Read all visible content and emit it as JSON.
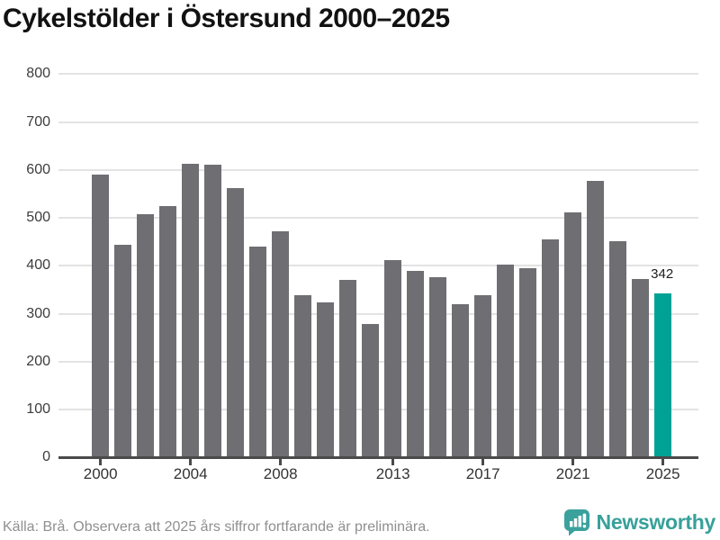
{
  "chart_data": {
    "type": "bar",
    "title": "Cykelstölder i Östersund 2000–2025",
    "categories": [
      2000,
      2001,
      2002,
      2003,
      2004,
      2005,
      2006,
      2007,
      2008,
      2009,
      2010,
      2011,
      2012,
      2013,
      2014,
      2015,
      2016,
      2017,
      2018,
      2019,
      2020,
      2021,
      2022,
      2023,
      2024,
      2025
    ],
    "values": [
      590,
      444,
      508,
      525,
      613,
      610,
      563,
      440,
      472,
      339,
      324,
      371,
      278,
      411,
      390,
      377,
      320,
      338,
      402,
      395,
      455,
      511,
      577,
      451,
      373,
      342
    ],
    "xlabel": "",
    "ylabel": "",
    "ylim": [
      0,
      800
    ],
    "yticks": [
      0,
      100,
      200,
      300,
      400,
      500,
      600,
      700,
      800
    ],
    "xticks": [
      2000,
      2004,
      2008,
      2013,
      2017,
      2021,
      2025
    ],
    "grid": true,
    "legend": false,
    "bar_color": "#6e6e73",
    "highlight": {
      "category": 2025,
      "value": 342,
      "label": "342",
      "color": "#00a295"
    }
  },
  "footer": {
    "source": "Källa: Brå. Observera att 2025 års siffror fortfarande är preliminära.",
    "brand": "Newsworthy",
    "brand_color": "#38a09a",
    "logo_icon": "newsworthy-bubble-chart-icon"
  }
}
